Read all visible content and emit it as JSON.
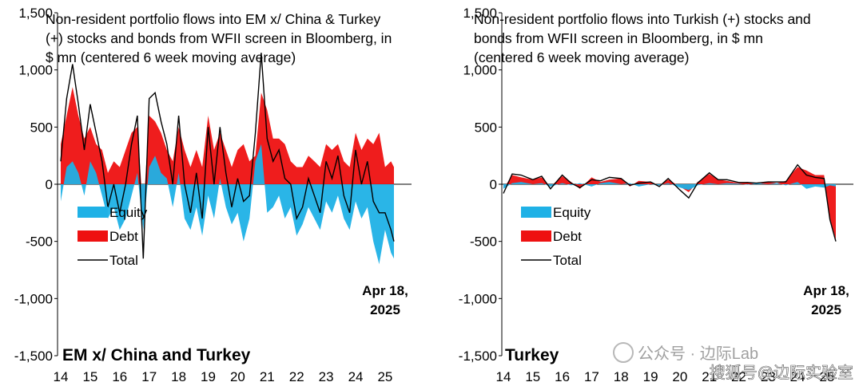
{
  "watermarks": {
    "wm1": "公众号 · 边际Lab",
    "wm2": "搜狐号@边际实验室"
  },
  "colors": {
    "equity": "#1fb1e6",
    "debt": "#ee1111",
    "total": "#000000"
  },
  "chart_data": [
    {
      "type": "area",
      "panel_label": "EM x/ China and Turkey",
      "title_lines": [
        "Non-resident portfolio flows into EM x/ China & Turkey",
        "(+) stocks and bonds from WFII screen in Bloomberg, in",
        "$ mn (centered 6 week moving average)"
      ],
      "ytick_labels": [
        "1,500",
        "1,000",
        "500",
        "0",
        "-500",
        "-1,000",
        "-1,500"
      ],
      "xtick_labels": [
        "14",
        "15",
        "16",
        "17",
        "18",
        "19",
        "20",
        "21",
        "22",
        "23",
        "24",
        "25"
      ],
      "ylim": [
        -1500,
        1500
      ],
      "legend": [
        "Equity",
        "Debt",
        "Total"
      ],
      "annotation": [
        "Apr 18,",
        "2025"
      ],
      "x_range": [
        2014.0,
        2025.3
      ],
      "series": [
        {
          "name": "Equity",
          "x": [
            2014.0,
            2014.2,
            2014.4,
            2014.6,
            2014.8,
            2015.0,
            2015.2,
            2015.4,
            2015.6,
            2015.8,
            2016.0,
            2016.2,
            2016.4,
            2016.6,
            2016.8,
            2017.0,
            2017.2,
            2017.4,
            2017.6,
            2017.8,
            2018.0,
            2018.2,
            2018.4,
            2018.6,
            2018.8,
            2019.0,
            2019.2,
            2019.4,
            2019.6,
            2019.8,
            2020.0,
            2020.2,
            2020.4,
            2020.6,
            2020.8,
            2021.0,
            2021.2,
            2021.4,
            2021.6,
            2021.8,
            2022.0,
            2022.2,
            2022.4,
            2022.6,
            2022.8,
            2023.0,
            2023.2,
            2023.4,
            2023.6,
            2023.8,
            2024.0,
            2024.2,
            2024.4,
            2024.6,
            2024.8,
            2025.0,
            2025.2,
            2025.3
          ],
          "values": [
            -150,
            150,
            200,
            100,
            -100,
            200,
            100,
            -100,
            -300,
            -200,
            -400,
            -300,
            -100,
            100,
            -400,
            150,
            250,
            100,
            50,
            -200,
            100,
            -300,
            -400,
            -200,
            -450,
            -100,
            -300,
            50,
            -200,
            -350,
            -250,
            -500,
            -300,
            200,
            350,
            -250,
            -200,
            -100,
            -300,
            -200,
            -450,
            -350,
            -200,
            -300,
            -400,
            -150,
            -250,
            -100,
            -300,
            -400,
            -150,
            -300,
            -200,
            -500,
            -700,
            -400,
            -600,
            -650
          ]
        },
        {
          "name": "Debt",
          "x": [
            2014.0,
            2014.2,
            2014.4,
            2014.6,
            2014.8,
            2015.0,
            2015.2,
            2015.4,
            2015.6,
            2015.8,
            2016.0,
            2016.2,
            2016.4,
            2016.6,
            2016.8,
            2017.0,
            2017.2,
            2017.4,
            2017.6,
            2017.8,
            2018.0,
            2018.2,
            2018.4,
            2018.6,
            2018.8,
            2019.0,
            2019.2,
            2019.4,
            2019.6,
            2019.8,
            2020.0,
            2020.2,
            2020.4,
            2020.6,
            2020.8,
            2021.0,
            2021.2,
            2021.4,
            2021.6,
            2021.8,
            2022.0,
            2022.2,
            2022.4,
            2022.6,
            2022.8,
            2023.0,
            2023.2,
            2023.4,
            2023.6,
            2023.8,
            2024.0,
            2024.2,
            2024.4,
            2024.6,
            2024.8,
            2025.0,
            2025.2,
            2025.3
          ],
          "values": [
            350,
            600,
            850,
            600,
            400,
            500,
            350,
            300,
            100,
            200,
            150,
            300,
            450,
            500,
            -250,
            600,
            550,
            450,
            300,
            200,
            500,
            300,
            150,
            300,
            150,
            600,
            300,
            450,
            300,
            150,
            300,
            350,
            200,
            250,
            800,
            650,
            400,
            400,
            350,
            200,
            150,
            150,
            250,
            200,
            150,
            350,
            300,
            350,
            200,
            150,
            450,
            300,
            400,
            350,
            450,
            150,
            200,
            150
          ]
        },
        {
          "name": "Total",
          "x": [
            2014.0,
            2014.2,
            2014.4,
            2014.6,
            2014.8,
            2015.0,
            2015.2,
            2015.4,
            2015.6,
            2015.8,
            2016.0,
            2016.2,
            2016.4,
            2016.6,
            2016.8,
            2017.0,
            2017.2,
            2017.4,
            2017.6,
            2017.8,
            2018.0,
            2018.2,
            2018.4,
            2018.6,
            2018.8,
            2019.0,
            2019.2,
            2019.4,
            2019.6,
            2019.8,
            2020.0,
            2020.2,
            2020.4,
            2020.6,
            2020.8,
            2021.0,
            2021.2,
            2021.4,
            2021.6,
            2021.8,
            2022.0,
            2022.2,
            2022.4,
            2022.6,
            2022.8,
            2023.0,
            2023.2,
            2023.4,
            2023.6,
            2023.8,
            2024.0,
            2024.2,
            2024.4,
            2024.6,
            2024.8,
            2025.0,
            2025.2,
            2025.3
          ],
          "values": [
            200,
            750,
            1050,
            700,
            300,
            700,
            450,
            200,
            -200,
            0,
            -250,
            0,
            350,
            600,
            -650,
            750,
            800,
            550,
            350,
            0,
            600,
            0,
            -250,
            100,
            -300,
            500,
            0,
            500,
            100,
            -200,
            50,
            -150,
            -100,
            450,
            1150,
            400,
            200,
            300,
            50,
            0,
            -300,
            -200,
            50,
            -100,
            -250,
            200,
            50,
            250,
            -100,
            -250,
            300,
            0,
            200,
            -150,
            -250,
            -250,
            -400,
            -500
          ]
        }
      ]
    },
    {
      "type": "area",
      "panel_label": "Turkey",
      "title_lines": [
        "Non-resident portfolio flows into Turkish (+) stocks and",
        "bonds from WFII screen in Bloomberg, in $ mn",
        "(centered 6 week moving average)"
      ],
      "ytick_labels": [
        "1,500",
        "1,000",
        "500",
        "0",
        "-500",
        "-1,000",
        "-1,500"
      ],
      "xtick_labels": [
        "14",
        "15",
        "16",
        "17",
        "18",
        "19",
        "20",
        "21",
        "22",
        "23",
        "24",
        "25"
      ],
      "ylim": [
        -1500,
        1500
      ],
      "legend": [
        "Equity",
        "Debt",
        "Total"
      ],
      "annotation": [
        "Apr 18,",
        "2025"
      ],
      "x_range": [
        2014.0,
        2025.3
      ],
      "series": [
        {
          "name": "Equity",
          "x": [
            2014.0,
            2014.3,
            2014.6,
            2015.0,
            2015.3,
            2015.6,
            2016.0,
            2016.3,
            2016.6,
            2017.0,
            2017.3,
            2017.6,
            2018.0,
            2018.3,
            2018.6,
            2019.0,
            2019.3,
            2019.6,
            2020.0,
            2020.3,
            2020.6,
            2021.0,
            2021.3,
            2021.6,
            2022.0,
            2022.3,
            2022.6,
            2023.0,
            2023.3,
            2023.6,
            2024.0,
            2024.3,
            2024.6,
            2024.9,
            2025.1,
            2025.3
          ],
          "values": [
            -40,
            10,
            20,
            0,
            10,
            -20,
            10,
            -10,
            10,
            -20,
            10,
            20,
            0,
            10,
            -20,
            0,
            -10,
            10,
            -30,
            -50,
            -10,
            10,
            0,
            10,
            5,
            -5,
            10,
            0,
            10,
            -10,
            20,
            -40,
            -20,
            -30,
            -10,
            -20
          ]
        },
        {
          "name": "Debt",
          "x": [
            2014.0,
            2014.3,
            2014.6,
            2015.0,
            2015.3,
            2015.6,
            2016.0,
            2016.3,
            2016.6,
            2017.0,
            2017.3,
            2017.6,
            2018.0,
            2018.3,
            2018.6,
            2019.0,
            2019.3,
            2019.6,
            2020.0,
            2020.3,
            2020.6,
            2021.0,
            2021.3,
            2021.6,
            2022.0,
            2022.3,
            2022.6,
            2023.0,
            2023.3,
            2023.6,
            2024.0,
            2024.3,
            2024.6,
            2024.9,
            2025.1,
            2025.3
          ],
          "values": [
            -40,
            80,
            60,
            40,
            60,
            -20,
            70,
            20,
            -40,
            60,
            20,
            40,
            50,
            -20,
            30,
            20,
            -10,
            40,
            -20,
            -70,
            20,
            90,
            40,
            30,
            10,
            20,
            0,
            20,
            10,
            30,
            150,
            120,
            80,
            80,
            -300,
            -480
          ]
        },
        {
          "name": "Total",
          "x": [
            2014.0,
            2014.3,
            2014.6,
            2015.0,
            2015.3,
            2015.6,
            2016.0,
            2016.3,
            2016.6,
            2017.0,
            2017.3,
            2017.6,
            2018.0,
            2018.3,
            2018.6,
            2019.0,
            2019.3,
            2019.6,
            2020.0,
            2020.3,
            2020.6,
            2021.0,
            2021.3,
            2021.6,
            2022.0,
            2022.3,
            2022.6,
            2023.0,
            2023.3,
            2023.6,
            2024.0,
            2024.3,
            2024.6,
            2024.9,
            2025.1,
            2025.3
          ],
          "values": [
            -80,
            90,
            80,
            40,
            70,
            -40,
            80,
            10,
            -30,
            40,
            30,
            60,
            50,
            -10,
            10,
            20,
            -20,
            50,
            -50,
            -120,
            10,
            100,
            40,
            40,
            15,
            15,
            10,
            20,
            20,
            20,
            170,
            80,
            60,
            50,
            -310,
            -500
          ]
        }
      ]
    }
  ]
}
